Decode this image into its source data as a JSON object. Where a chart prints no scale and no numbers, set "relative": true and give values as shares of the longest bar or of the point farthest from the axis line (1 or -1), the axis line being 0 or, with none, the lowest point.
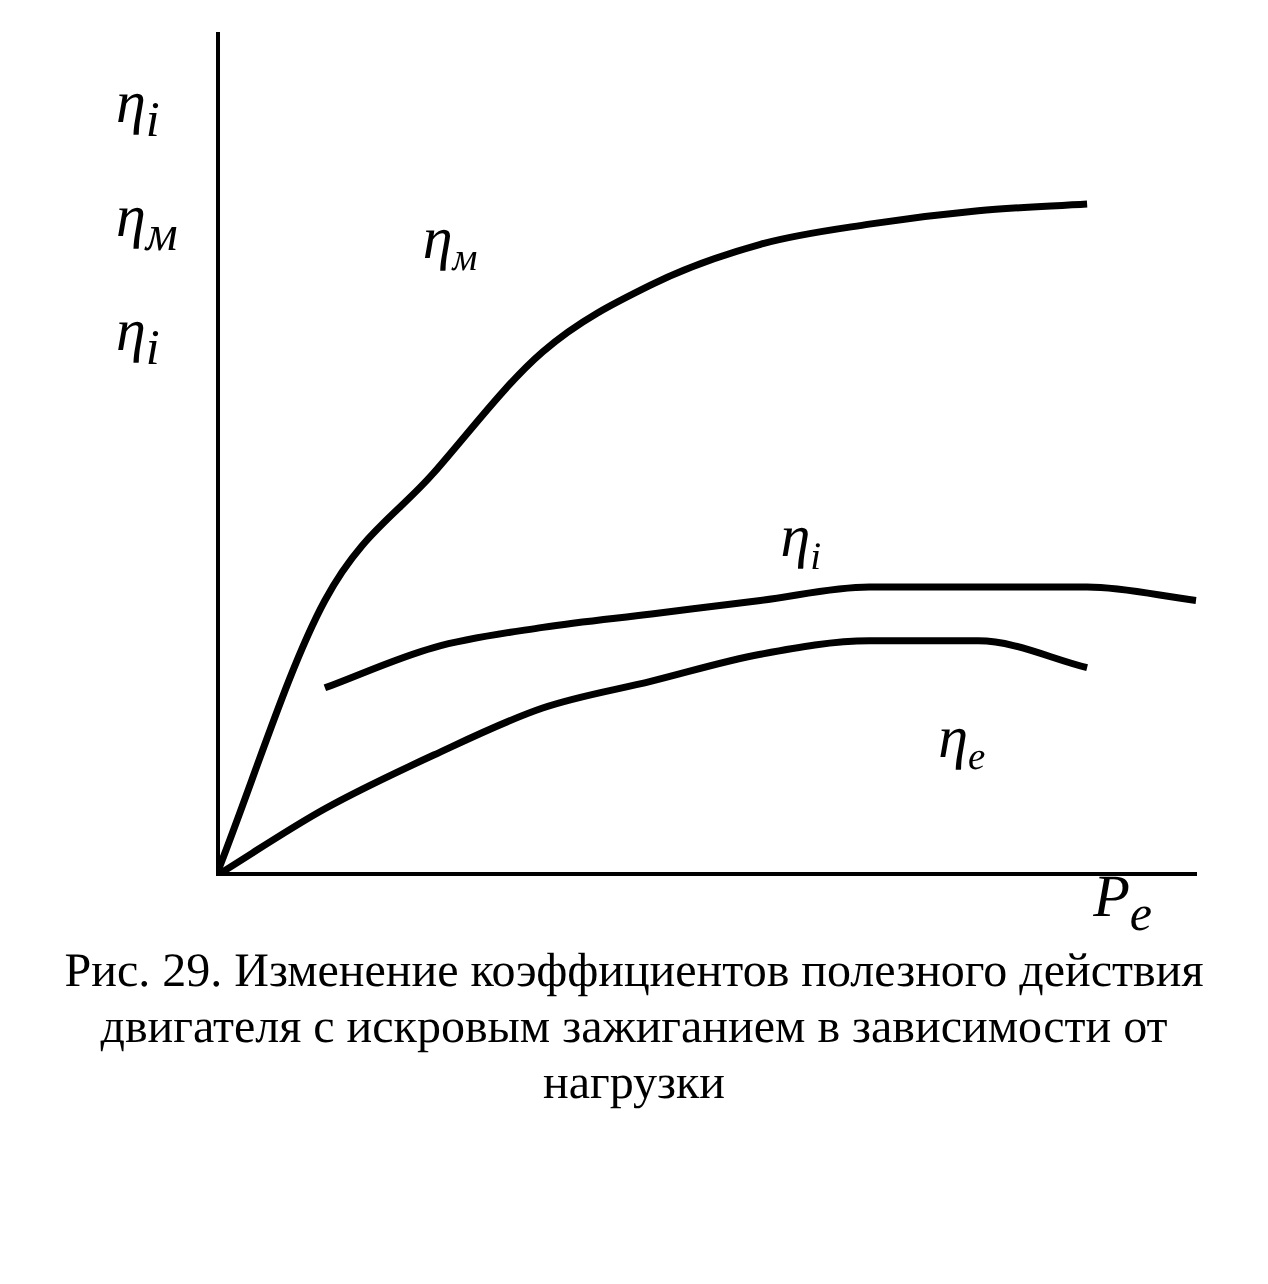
{
  "chart_data": {
    "type": "line",
    "relative": true,
    "xlabel": "P$_{e}$",
    "ylabel": "η$_{i}$ η$_{м}$ η$_{i}$",
    "categories": [
      null,
      null,
      null,
      null,
      null,
      null,
      null,
      null,
      null,
      null
    ],
    "series": [
      {
        "name": "η$_{м}$",
        "color": "#000000",
        "values": [
          0,
          0.41,
          0.6,
          0.78,
          0.88,
          0.94,
          0.97,
          0.99,
          1.0,
          null
        ]
      },
      {
        "name": "η$_{i}$",
        "color": "#000000",
        "values": [
          null,
          0.28,
          0.34,
          0.37,
          0.39,
          0.41,
          0.43,
          0.43,
          0.43,
          0.41
        ]
      },
      {
        "name": "η$_{e}$",
        "color": "#000000",
        "values": [
          0,
          0.1,
          0.18,
          0.25,
          0.29,
          0.33,
          0.35,
          0.35,
          0.31,
          null
        ]
      }
    ],
    "legend": false,
    "grid": false,
    "marker": "none",
    "line_style": "solid",
    "annotations": [
      "Рис. 29. Изменение коэффициентов полезного действия двигателя с искровым зажиганием в зависимости от нагрузки"
    ]
  }
}
